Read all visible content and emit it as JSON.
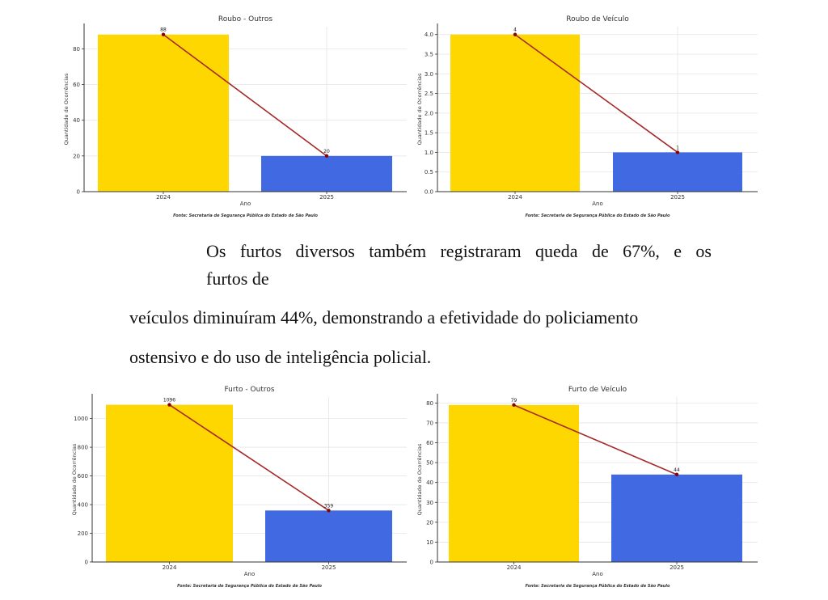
{
  "paragraph": {
    "line1": "Os furtos diversos também registraram queda de 67%, e os",
    "line2": "furtos de",
    "line3": "veículos diminuíram 44%, demonstrando a efetividade do policiamento",
    "line4": "ostensivo e do uso de inteligência policial."
  },
  "colors": {
    "bar_2024": "#FFD700",
    "bar_2025": "#4169E1",
    "trend_line": "#A52A2A",
    "grid": "#e5e5e5",
    "axis": "#333333"
  },
  "chart_data": [
    {
      "type": "bar",
      "title": "Roubo - Outros",
      "categories": [
        "2024",
        "2025"
      ],
      "values": [
        88,
        20
      ],
      "data_labels": [
        "88",
        "20"
      ],
      "xlabel": "Ano",
      "ylabel": "Quantidade de Ocorrências",
      "ylim": [
        0,
        92.4
      ],
      "yticks": [
        0,
        20,
        40,
        60,
        80
      ],
      "ytick_labels": [
        "0",
        "20",
        "40",
        "60",
        "80"
      ],
      "trend_line": true,
      "grid": true,
      "source": "Fonte: Secretaria de Segurança Pública do Estado de São Paulo"
    },
    {
      "type": "bar",
      "title": "Roubo de Veículo",
      "categories": [
        "2024",
        "2025"
      ],
      "values": [
        4,
        1
      ],
      "data_labels": [
        "4",
        "1"
      ],
      "xlabel": "Ano",
      "ylabel": "Quantidade de Ocorrências",
      "ylim": [
        0,
        4.2
      ],
      "yticks": [
        0,
        0.5,
        1,
        1.5,
        2,
        2.5,
        3,
        3.5,
        4
      ],
      "ytick_labels": [
        "0.0",
        "0.5",
        "1.0",
        "1.5",
        "2.0",
        "2.5",
        "3.0",
        "3.5",
        "4.0"
      ],
      "trend_line": true,
      "grid": true,
      "source": "Fonte: Secretaria de Segurança Pública do Estado de São Paulo"
    },
    {
      "type": "bar",
      "title": "Furto - Outros",
      "categories": [
        "2024",
        "2025"
      ],
      "values": [
        1096,
        359
      ],
      "data_labels": [
        "1096",
        "359"
      ],
      "xlabel": "Ano",
      "ylabel": "Quantidade de Ocorrências",
      "ylim": [
        0,
        1150
      ],
      "yticks": [
        0,
        200,
        400,
        600,
        800,
        1000
      ],
      "ytick_labels": [
        "0",
        "200",
        "400",
        "600",
        "800",
        "1000"
      ],
      "trend_line": true,
      "grid": true,
      "source": "Fonte: Secretaria de Segurança Pública do Estado de São Paulo"
    },
    {
      "type": "bar",
      "title": "Furto de Veículo",
      "categories": [
        "2024",
        "2025"
      ],
      "values": [
        79,
        44
      ],
      "data_labels": [
        "79",
        "44"
      ],
      "xlabel": "Ano",
      "ylabel": "Quantidade de Ocorrências",
      "ylim": [
        0,
        83
      ],
      "yticks": [
        0,
        10,
        20,
        30,
        40,
        50,
        60,
        70,
        80
      ],
      "ytick_labels": [
        "0",
        "10",
        "20",
        "30",
        "40",
        "50",
        "60",
        "70",
        "80"
      ],
      "trend_line": true,
      "grid": true,
      "source": "Fonte: Secretaria de Segurança Pública do Estado de São Paulo"
    }
  ]
}
